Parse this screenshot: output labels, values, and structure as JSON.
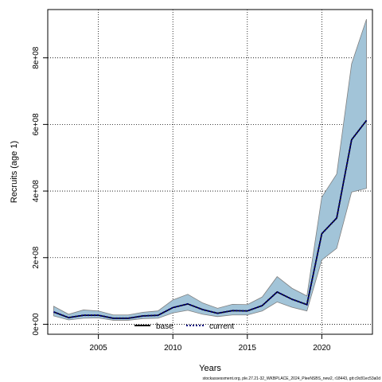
{
  "chart_data": {
    "type": "line",
    "xlabel": "Years",
    "ylabel": "Recruits (age 1)",
    "xlim": [
      2001.6,
      2023.4
    ],
    "ylim": [
      -30000000,
      945000000
    ],
    "x_ticks": [
      2005,
      2010,
      2015,
      2020
    ],
    "x_tick_labels": [
      "2005",
      "2010",
      "2015",
      "2020"
    ],
    "y_ticks": [
      0,
      200000000,
      400000000,
      600000000,
      800000000
    ],
    "y_tick_labels": [
      "0e+00",
      "2e+08",
      "4e+08",
      "6e+08",
      "8e+08"
    ],
    "grid": true,
    "legend_position": "bottom-center",
    "x": [
      2002,
      2003,
      2004,
      2005,
      2006,
      2007,
      2008,
      2009,
      2010,
      2011,
      2012,
      2013,
      2014,
      2015,
      2016,
      2017,
      2018,
      2019,
      2020,
      2021,
      2022,
      2023
    ],
    "series": [
      {
        "name": "base",
        "color": "#000000",
        "style": "solid",
        "values": [
          37000000,
          20000000,
          27000000,
          27000000,
          18000000,
          18000000,
          25000000,
          27000000,
          50000000,
          61000000,
          44000000,
          33000000,
          41000000,
          40000000,
          56000000,
          97000000,
          75000000,
          59000000,
          272000000,
          319000000,
          554000000,
          612000000
        ]
      },
      {
        "name": "current",
        "color": "#000080",
        "style": "dotted",
        "values": [
          37000000,
          20000000,
          27000000,
          27000000,
          18000000,
          18000000,
          25000000,
          27000000,
          50000000,
          61000000,
          44000000,
          33000000,
          41000000,
          40000000,
          56000000,
          97000000,
          75000000,
          59000000,
          272000000,
          319000000,
          554000000,
          612000000
        ]
      }
    ],
    "band": {
      "color": "#a2c4d8",
      "edge_color": "#808080",
      "upper": [
        54000000,
        30000000,
        43000000,
        40000000,
        28000000,
        28000000,
        36000000,
        40000000,
        73000000,
        90000000,
        64000000,
        48000000,
        60000000,
        59000000,
        82000000,
        143000000,
        108000000,
        85000000,
        382000000,
        451000000,
        782000000,
        916000000
      ],
      "lower": [
        25000000,
        13000000,
        18000000,
        19000000,
        12000000,
        12000000,
        17000000,
        18000000,
        34000000,
        42000000,
        30000000,
        23000000,
        28000000,
        28000000,
        40000000,
        67000000,
        51000000,
        40000000,
        193000000,
        228000000,
        397000000,
        408000000
      ]
    },
    "footer": "stockassessment.org, ple.27.21-32_WKBPLACE_2024_PleeNSBS_new2, r18443, git:c9c81ec53a0d"
  }
}
